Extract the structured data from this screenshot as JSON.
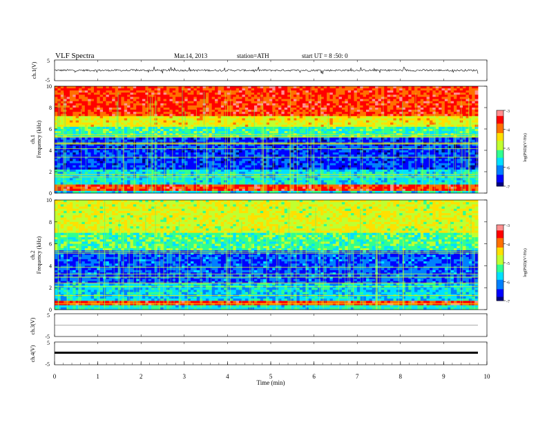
{
  "header": {
    "title": "VLF  Spectra",
    "date": "Mar.14, 2013",
    "station": "station=ATH",
    "start": "start  UT  =    8 :50: 0"
  },
  "colors": {
    "colormap": [
      "#00007f",
      "#0000ff",
      "#0080ff",
      "#00e0ff",
      "#30ff90",
      "#c0ff30",
      "#ffe000",
      "#ff7000",
      "#ff0000",
      "#ff9090",
      "#ffffff"
    ],
    "trace": "#000000"
  },
  "chart_data": [
    {
      "type": "line",
      "panel": "ch1-waveform",
      "ylabel": "ch.1(V)",
      "ylim": [
        -5,
        5
      ],
      "yticks": [
        "5",
        "-5"
      ],
      "xlim": [
        0,
        10
      ],
      "description_values": "noisy waveform around 0 V with spikes up to ~±2 V"
    },
    {
      "type": "heatmap",
      "panel": "ch1-spectrogram",
      "ylabel": [
        "ch.1",
        "Frequency (kHz)"
      ],
      "ylim": [
        0,
        10
      ],
      "yticks": [
        "0",
        "2",
        "4",
        "6",
        "8",
        "10"
      ],
      "xlim": [
        0,
        9.8
      ],
      "colorbar": {
        "label": "log(PSD)(V²/Hz)",
        "range": [
          -7,
          -3
        ],
        "ticks": [
          "-3",
          "-4",
          "-5",
          "-6",
          "-7"
        ]
      },
      "bands": [
        {
          "from": 0,
          "to": 0.3,
          "logpsd": -5.6
        },
        {
          "from": 0.3,
          "to": 0.7,
          "logpsd": -3.6
        },
        {
          "from": 0.7,
          "to": 2.3,
          "logpsd": -5.6
        },
        {
          "from": 2.3,
          "to": 5.2,
          "logpsd": -6.4
        },
        {
          "from": 5.2,
          "to": 6.2,
          "logpsd": -5.3
        },
        {
          "from": 6.2,
          "to": 7.2,
          "logpsd": -4.5
        },
        {
          "from": 7.2,
          "to": 10,
          "logpsd": -3.6
        }
      ]
    },
    {
      "type": "heatmap",
      "panel": "ch2-spectrogram",
      "ylabel": [
        "ch.2",
        "Frequency (kHz)"
      ],
      "ylim": [
        0,
        10
      ],
      "yticks": [
        "0",
        "2",
        "4",
        "6",
        "8",
        "10"
      ],
      "xlim": [
        0,
        9.8
      ],
      "colorbar": {
        "label": "log(PSD)(V²/Hz)",
        "range": [
          -7,
          -3
        ],
        "ticks": [
          "-3",
          "-4",
          "-5",
          "-6",
          "-7"
        ]
      },
      "bands": [
        {
          "from": 0,
          "to": 0.5,
          "logpsd": -5.5
        },
        {
          "from": 0.5,
          "to": 0.8,
          "logpsd": -3.6
        },
        {
          "from": 0.8,
          "to": 2.5,
          "logpsd": -5.7
        },
        {
          "from": 2.5,
          "to": 5.5,
          "logpsd": -6.3
        },
        {
          "from": 5.5,
          "to": 7,
          "logpsd": -5.2
        },
        {
          "from": 7,
          "to": 10,
          "logpsd": -4.6
        }
      ]
    },
    {
      "type": "line",
      "panel": "ch3-waveform",
      "ylabel": "ch.3(V)",
      "ylim": [
        -5,
        5
      ],
      "yticks": [
        "5",
        "-5"
      ],
      "xlim": [
        0,
        10
      ],
      "values_constant": 0
    },
    {
      "type": "line",
      "panel": "ch4-waveform",
      "ylabel": "ch.4(V)",
      "ylim": [
        -5,
        5
      ],
      "yticks": [
        "5",
        "-5"
      ],
      "xlim": [
        0,
        10
      ],
      "values_constant": 0
    }
  ],
  "xaxis": {
    "label": "Time  (min)",
    "ticks": [
      "0",
      "1",
      "2",
      "3",
      "4",
      "5",
      "6",
      "7",
      "8",
      "9",
      "10"
    ]
  }
}
